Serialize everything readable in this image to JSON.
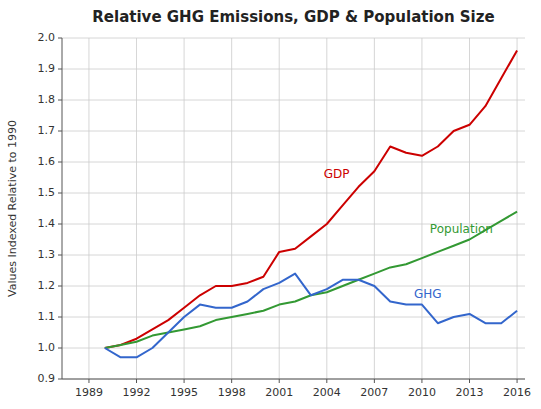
{
  "chart_data": {
    "type": "line",
    "title": "Relative GHG Emissions, GDP & Population Size",
    "ylabel": "Values Indexed Relative to 1990",
    "x": [
      1990,
      1991,
      1992,
      1993,
      1994,
      1995,
      1996,
      1997,
      1998,
      1999,
      2000,
      2001,
      2002,
      2003,
      2004,
      2005,
      2006,
      2007,
      2008,
      2009,
      2010,
      2011,
      2012,
      2013,
      2014,
      2015,
      2016
    ],
    "series": [
      {
        "color": "#cc0000",
        "values": [
          1.0,
          1.01,
          1.03,
          1.06,
          1.09,
          1.13,
          1.17,
          1.2,
          1.2,
          1.21,
          1.23,
          1.31,
          1.32,
          1.36,
          1.4,
          1.46,
          1.52,
          1.57,
          1.65,
          1.63,
          1.62,
          1.65,
          1.7,
          1.72,
          1.78,
          1.87,
          1.96
        ]
      },
      {
        "color": "#339933",
        "values": [
          1.0,
          1.01,
          1.02,
          1.04,
          1.05,
          1.06,
          1.07,
          1.09,
          1.1,
          1.11,
          1.12,
          1.14,
          1.15,
          1.17,
          1.18,
          1.2,
          1.22,
          1.24,
          1.26,
          1.27,
          1.29,
          1.31,
          1.33,
          1.35,
          1.38,
          1.41,
          1.44
        ]
      },
      {
        "color": "#3366cc",
        "values": [
          1.0,
          0.97,
          0.97,
          1.0,
          1.05,
          1.1,
          1.14,
          1.13,
          1.13,
          1.15,
          1.19,
          1.21,
          1.24,
          1.17,
          1.19,
          1.22,
          1.22,
          1.2,
          1.15,
          1.14,
          1.14,
          1.08,
          1.1,
          1.11,
          1.08,
          1.08,
          1.12
        ]
      }
    ],
    "annotations": [
      {
        "text": "GDP",
        "x": 2003.8,
        "y": 1.55,
        "color": "#cc0000"
      },
      {
        "text": "Population",
        "x": 2010.5,
        "y": 1.37,
        "color": "#339933"
      },
      {
        "text": "GHG",
        "x": 2009.5,
        "y": 1.16,
        "color": "#3366cc"
      }
    ],
    "xlim": [
      1987.3,
      2016.5
    ],
    "xticks": [
      1989,
      1992,
      1995,
      1998,
      2001,
      2004,
      2007,
      2010,
      2013,
      2016
    ],
    "ylim": [
      0.9,
      2.0
    ],
    "yticks": [
      0.9,
      {
        "value": 1.0,
        "label": "1.0"
      },
      1.1,
      1.2,
      1.3,
      1.4,
      1.5,
      1.6,
      1.7,
      1.8,
      1.9,
      {
        "value": 2.0,
        "label": "2.0"
      }
    ],
    "grid": true,
    "grid_color": "#cccccc"
  }
}
